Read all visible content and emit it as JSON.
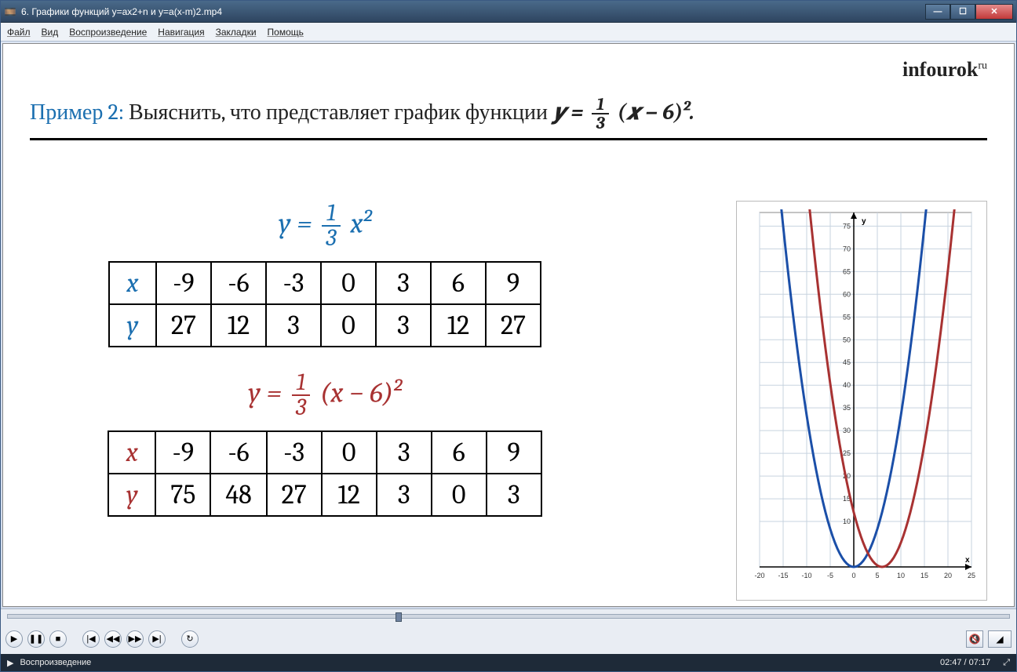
{
  "window": {
    "title": "6. Графики функций y=ax2+n и y=a(x-m)2.mp4",
    "min_label": "—",
    "max_label": "☐",
    "close_label": "✕"
  },
  "menu": {
    "items": [
      "Файл",
      "Вид",
      "Воспроизведение",
      "Навигация",
      "Закладки",
      "Помощь"
    ]
  },
  "logo": {
    "text": "infourok",
    "suffix": "ru"
  },
  "example": {
    "lead": "Пример 2:",
    "text": "Выяснить, что представляет график функции",
    "formula_html": "y = ⅓ (x − 6)²."
  },
  "formula1": {
    "lhs": "y =",
    "num": "1",
    "den": "3",
    "rhs": "x²",
    "color": "#1b6fb0"
  },
  "formula2": {
    "lhs": "y =",
    "num": "1",
    "den": "3",
    "rhs": "(x − 6)²",
    "color": "#a83232"
  },
  "table1": {
    "row_headers": [
      "x",
      "y"
    ],
    "x": [
      "-9",
      "-6",
      "-3",
      "0",
      "3",
      "6",
      "9"
    ],
    "y": [
      "27",
      "12",
      "3",
      "0",
      "3",
      "12",
      "27"
    ]
  },
  "table2": {
    "row_headers": [
      "x",
      "y"
    ],
    "x": [
      "-9",
      "-6",
      "-3",
      "0",
      "3",
      "6",
      "9"
    ],
    "y": [
      "75",
      "48",
      "27",
      "12",
      "3",
      "0",
      "3"
    ]
  },
  "chart": {
    "type": "line",
    "background_color": "#ffffff",
    "grid_color": "#c7d3df",
    "axis_color": "#000000",
    "x_axis_label": "x",
    "y_axis_label": "y",
    "xlim": [
      -20,
      25
    ],
    "xtick_step": 5,
    "x_ticks": [
      -20,
      -15,
      -10,
      -5,
      0,
      5,
      10,
      15,
      20,
      25
    ],
    "ylim": [
      0,
      78
    ],
    "ytick_step": 5,
    "y_ticks": [
      10,
      15,
      20,
      25,
      30,
      35,
      40,
      45,
      50,
      55,
      60,
      65,
      70,
      75
    ],
    "label_fontsize": 10,
    "line_width": 3,
    "series": [
      {
        "name": "blue-parabola",
        "color": "#1b4fa8",
        "vertex_x": 0,
        "coeff": 0.333333,
        "x_range": [
          -16,
          16
        ]
      },
      {
        "name": "red-parabola",
        "color": "#a83232",
        "vertex_x": 6,
        "coeff": 0.333333,
        "x_range": [
          -10,
          22
        ]
      }
    ]
  },
  "seek": {
    "position_pct": 38.7
  },
  "status": {
    "state": "Воспроизведение",
    "time": "02:47 / 07:17"
  }
}
